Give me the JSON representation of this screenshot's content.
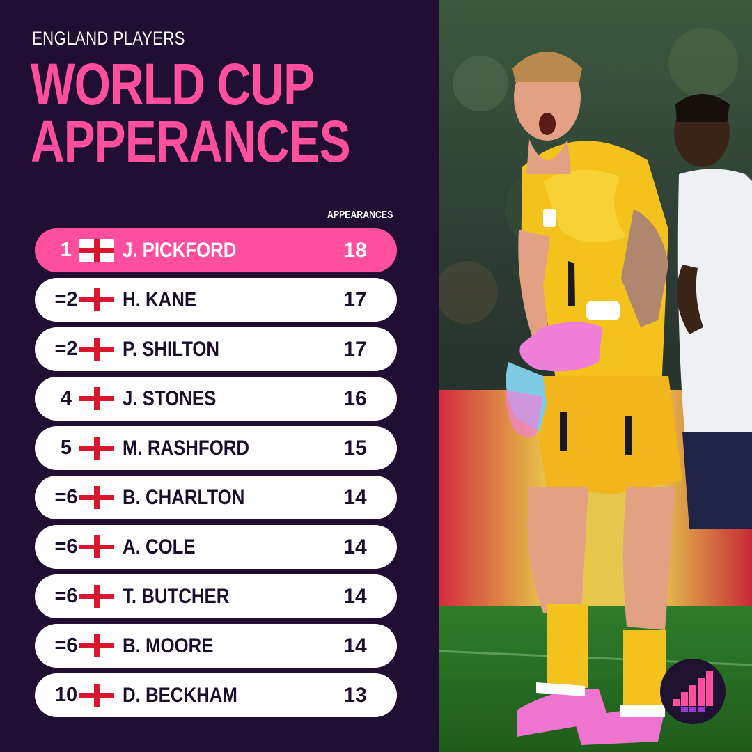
{
  "header": {
    "kicker": "ENGLAND PLAYERS",
    "title_line1": "WORLD CUP",
    "title_line2": "APPERANCES",
    "column_label": "APPEARANCES"
  },
  "colors": {
    "background": "#200f33",
    "accent_pink": "#ff4f9e",
    "row_white": "#ffffff",
    "flag_red": "#d8172f",
    "kit_yellow": "#f4c21d"
  },
  "rows": [
    {
      "rank": "1",
      "flag_icon": "england-flag-icon",
      "name": "J. PICKFORD",
      "appearances": "18",
      "highlighted": true
    },
    {
      "rank": "=2",
      "flag_icon": "england-flag-icon",
      "name": "H. KANE",
      "appearances": "17"
    },
    {
      "rank": "=2",
      "flag_icon": "england-flag-icon",
      "name": "P. SHILTON",
      "appearances": "17"
    },
    {
      "rank": "4",
      "flag_icon": "england-flag-icon",
      "name": "J. STONES",
      "appearances": "16"
    },
    {
      "rank": "5",
      "flag_icon": "england-flag-icon",
      "name": "M. RASHFORD",
      "appearances": "15"
    },
    {
      "rank": "=6",
      "flag_icon": "england-flag-icon",
      "name": "B. CHARLTON",
      "appearances": "14"
    },
    {
      "rank": "=6",
      "flag_icon": "england-flag-icon",
      "name": "A. COLE",
      "appearances": "14"
    },
    {
      "rank": "=6",
      "flag_icon": "england-flag-icon",
      "name": "T. BUTCHER",
      "appearances": "14"
    },
    {
      "rank": "=6",
      "flag_icon": "england-flag-icon",
      "name": "B. MOORE",
      "appearances": "14"
    },
    {
      "rank": "10",
      "flag_icon": "england-flag-icon",
      "name": "D. BECKHAM",
      "appearances": "13"
    }
  ],
  "photo": {
    "subject": "goalkeeper-in-yellow-kit",
    "shirt_number": "1"
  },
  "brand": {
    "logo_icon": "bar-stairs-logo-icon"
  }
}
